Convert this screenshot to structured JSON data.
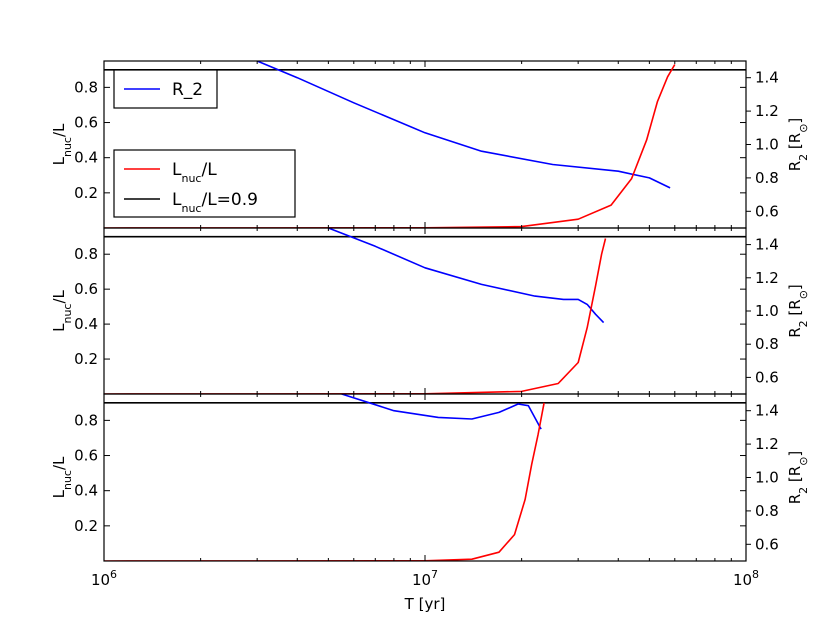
{
  "chart_data": {
    "type": "line",
    "xlabel": "T [yr]",
    "xscale": "log",
    "xlim": [
      1000000,
      100000000
    ],
    "xticks": [
      {
        "base": "10",
        "exp": "6",
        "value": 1000000
      },
      {
        "base": "10",
        "exp": "7",
        "value": 10000000
      },
      {
        "base": "10",
        "exp": "8",
        "value": 100000000
      }
    ],
    "left_ylabel": {
      "main": "L",
      "sub": "nuc",
      "rest": "/L"
    },
    "right_ylabel": {
      "main": "R",
      "sub": "2",
      "rest": " [R",
      "sub2": "⊙",
      "close": "]"
    },
    "left_ylim": [
      0,
      0.95
    ],
    "right_ylim": [
      0.5,
      1.5
    ],
    "left_yticks": [
      "0.2",
      "0.4",
      "0.6",
      "0.8"
    ],
    "right_yticks": [
      "0.6",
      "0.8",
      "1.0",
      "1.2",
      "1.4"
    ],
    "colors": {
      "R_2": "#0000ff",
      "L_nuc": "#ff0000",
      "threshold": "#000000"
    },
    "legend": [
      {
        "key": "R_2",
        "label": "R_2",
        "color": "#0000ff",
        "placement": "upper-left"
      },
      {
        "key": "L_nuc",
        "main": "L",
        "sub": "nuc",
        "rest": "/L",
        "color": "#ff0000",
        "placement": "middle-left"
      },
      {
        "key": "threshold",
        "main": "L",
        "sub": "nuc",
        "rest": "/L=0.9",
        "color": "#000000",
        "placement": "middle-left"
      }
    ],
    "panels": [
      {
        "id": "top",
        "L_nuc": [
          [
            1000000,
            0
          ],
          [
            10000000,
            0.001
          ],
          [
            20000000,
            0.008
          ],
          [
            30000000,
            0.05
          ],
          [
            38000000,
            0.13
          ],
          [
            44000000,
            0.28
          ],
          [
            49000000,
            0.5
          ],
          [
            53000000,
            0.72
          ],
          [
            57000000,
            0.86
          ],
          [
            60000000,
            0.93
          ]
        ],
        "threshold": 0.9,
        "R_2": [
          [
            3000000,
            1.5
          ],
          [
            4000000,
            1.4
          ],
          [
            6000000,
            1.25
          ],
          [
            10000000,
            1.07
          ],
          [
            15000000,
            0.96
          ],
          [
            25000000,
            0.88
          ],
          [
            40000000,
            0.84
          ],
          [
            50000000,
            0.8
          ],
          [
            58000000,
            0.74
          ]
        ]
      },
      {
        "id": "middle",
        "L_nuc": [
          [
            1000000,
            0
          ],
          [
            10000000,
            0.001
          ],
          [
            20000000,
            0.015
          ],
          [
            26000000,
            0.06
          ],
          [
            30000000,
            0.18
          ],
          [
            32000000,
            0.38
          ],
          [
            34000000,
            0.62
          ],
          [
            35500000,
            0.8
          ],
          [
            36500000,
            0.89
          ]
        ],
        "threshold": 0.9,
        "R_2": [
          [
            5000000,
            1.5
          ],
          [
            7000000,
            1.39
          ],
          [
            10000000,
            1.26
          ],
          [
            15000000,
            1.16
          ],
          [
            22000000,
            1.09
          ],
          [
            27000000,
            1.07
          ],
          [
            30000000,
            1.07
          ],
          [
            32000000,
            1.04
          ],
          [
            34000000,
            0.98
          ],
          [
            36000000,
            0.93
          ]
        ]
      },
      {
        "id": "bottom",
        "L_nuc": [
          [
            1000000,
            0
          ],
          [
            10000000,
            0.001
          ],
          [
            14000000,
            0.01
          ],
          [
            17000000,
            0.05
          ],
          [
            19000000,
            0.15
          ],
          [
            20500000,
            0.35
          ],
          [
            21500000,
            0.55
          ],
          [
            22500000,
            0.72
          ],
          [
            23500000,
            0.9
          ]
        ],
        "threshold": 0.9,
        "R_2": [
          [
            5500000,
            1.5
          ],
          [
            8000000,
            1.4
          ],
          [
            11000000,
            1.36
          ],
          [
            14000000,
            1.35
          ],
          [
            17000000,
            1.39
          ],
          [
            19500000,
            1.44
          ],
          [
            21000000,
            1.43
          ],
          [
            23000000,
            1.29
          ]
        ]
      }
    ]
  }
}
